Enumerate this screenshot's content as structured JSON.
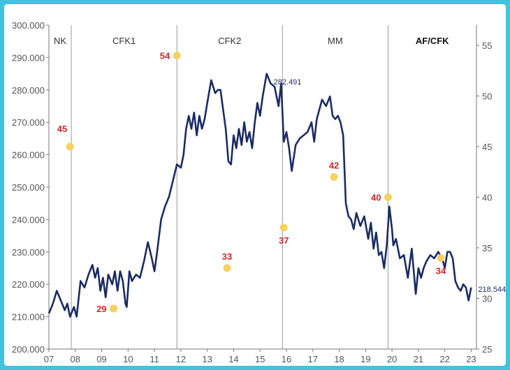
{
  "colors": {
    "background": "#3fc3de",
    "line": "#1a2b66",
    "dot": "#f6d160",
    "point_label": "#d7262b",
    "divider": "#9a9a9a",
    "axis": "#777777"
  },
  "chart_data": {
    "type": "line",
    "title": "",
    "xlabel": "",
    "ylabel": "",
    "xlim": [
      2007,
      2023.2
    ],
    "ylim": [
      200000,
      300000
    ],
    "ylim_right": [
      25,
      57
    ],
    "x_tick_labels": [
      "07",
      "08",
      "09",
      "10",
      "11",
      "12",
      "13",
      "14",
      "15",
      "16",
      "17",
      "18",
      "19",
      "20",
      "21",
      "22",
      "23"
    ],
    "x_ticks": [
      2007,
      2008,
      2009,
      2010,
      2011,
      2012,
      2013,
      2014,
      2015,
      2016,
      2017,
      2018,
      2019,
      2020,
      2021,
      2022,
      2023
    ],
    "y_tick_labels_left": [
      "200.000",
      "210.000",
      "220.000",
      "230.000",
      "240.000",
      "250.000",
      "260.000",
      "270.000",
      "280.000",
      "290.000",
      "300.000"
    ],
    "y_ticks_left": [
      200000,
      210000,
      220000,
      230000,
      240000,
      250000,
      260000,
      270000,
      280000,
      290000,
      300000
    ],
    "y_tick_labels_right": [
      "25",
      "30",
      "35",
      "40",
      "45",
      "50",
      "55"
    ],
    "y_ticks_right": [
      25,
      30,
      35,
      40,
      45,
      50,
      55
    ],
    "grid": false,
    "periods": [
      {
        "label": "NK",
        "start": 2007,
        "end": 2007.85,
        "bold": false
      },
      {
        "label": "CFK1",
        "start": 2007.85,
        "end": 2011.85,
        "bold": false
      },
      {
        "label": "CFK2",
        "start": 2011.85,
        "end": 2015.85,
        "bold": false
      },
      {
        "label": "MM",
        "start": 2015.85,
        "end": 2019.85,
        "bold": false
      },
      {
        "label": "AF/CFK",
        "start": 2019.85,
        "end": 2023.2,
        "bold": true
      }
    ],
    "dividers": [
      2007.85,
      2011.85,
      2015.85,
      2019.85
    ],
    "series": [
      {
        "axis": "left",
        "x": [
          2007.0,
          2007.15,
          2007.3,
          2007.45,
          2007.6,
          2007.7,
          2007.8,
          2007.95,
          2008.05,
          2008.2,
          2008.35,
          2008.5,
          2008.65,
          2008.75,
          2008.85,
          2008.95,
          2009.05,
          2009.15,
          2009.25,
          2009.4,
          2009.5,
          2009.6,
          2009.7,
          2009.8,
          2009.9,
          2009.95,
          2010.05,
          2010.15,
          2010.3,
          2010.45,
          2010.6,
          2010.75,
          2010.9,
          2011.0,
          2011.1,
          2011.25,
          2011.4,
          2011.55,
          2011.7,
          2011.85,
          2012.0,
          2012.1,
          2012.2,
          2012.3,
          2012.4,
          2012.5,
          2012.6,
          2012.7,
          2012.8,
          2012.9,
          2013.0,
          2013.15,
          2013.3,
          2013.4,
          2013.5,
          2013.6,
          2013.7,
          2013.8,
          2013.9,
          2014.0,
          2014.1,
          2014.2,
          2014.3,
          2014.4,
          2014.5,
          2014.6,
          2014.7,
          2014.8,
          2014.9,
          2015.0,
          2015.1,
          2015.25,
          2015.4,
          2015.55,
          2015.7,
          2015.8,
          2015.9,
          2016.0,
          2016.1,
          2016.2,
          2016.35,
          2016.5,
          2016.65,
          2016.8,
          2016.95,
          2017.05,
          2017.15,
          2017.25,
          2017.35,
          2017.5,
          2017.65,
          2017.75,
          2017.85,
          2017.95,
          2018.05,
          2018.15,
          2018.25,
          2018.35,
          2018.45,
          2018.55,
          2018.65,
          2018.8,
          2018.95,
          2019.1,
          2019.2,
          2019.3,
          2019.4,
          2019.5,
          2019.6,
          2019.7,
          2019.8,
          2019.9,
          2020.0,
          2020.05,
          2020.15,
          2020.3,
          2020.45,
          2020.6,
          2020.75,
          2020.9,
          2021.0,
          2021.1,
          2021.2,
          2021.3,
          2021.45,
          2021.6,
          2021.75,
          2021.9,
          2022.0,
          2022.1,
          2022.2,
          2022.3,
          2022.4,
          2022.5,
          2022.6,
          2022.7,
          2022.8,
          2022.9,
          2023.0
        ],
        "y": [
          211000,
          214000,
          218000,
          215000,
          212000,
          214000,
          210000,
          213000,
          210000,
          221000,
          219000,
          223000,
          226000,
          222000,
          225000,
          218000,
          222000,
          216000,
          223000,
          220000,
          224000,
          218000,
          224000,
          221000,
          214000,
          213000,
          224000,
          221000,
          223000,
          222000,
          227000,
          233000,
          228000,
          224000,
          230000,
          240000,
          244000,
          247000,
          252000,
          257000,
          256000,
          260000,
          268000,
          272000,
          268000,
          273000,
          266000,
          272000,
          268000,
          271000,
          276000,
          283000,
          279000,
          280000,
          280000,
          274000,
          268000,
          258000,
          257000,
          266000,
          262000,
          268000,
          263000,
          270000,
          264000,
          267000,
          262000,
          270000,
          276000,
          272000,
          278000,
          285000,
          282000,
          281000,
          275000,
          282000,
          264000,
          267000,
          262000,
          255000,
          263000,
          265000,
          266000,
          267000,
          270000,
          264000,
          271000,
          274000,
          277000,
          275000,
          278000,
          272000,
          271000,
          272000,
          270000,
          266000,
          245000,
          241000,
          240000,
          237000,
          242000,
          238000,
          241000,
          234000,
          239000,
          231000,
          236000,
          229000,
          230000,
          225000,
          232000,
          244000,
          237000,
          232000,
          234000,
          228000,
          229000,
          222000,
          231000,
          217000,
          225000,
          222000,
          225000,
          227000,
          229000,
          228000,
          230000,
          228000,
          225000,
          230000,
          230000,
          228000,
          221000,
          219000,
          218000,
          220000,
          219000,
          215000,
          219000
        ]
      }
    ],
    "points": [
      {
        "x": 2007.8,
        "value": 45,
        "label": "45",
        "label_pos": "above-left"
      },
      {
        "x": 2009.45,
        "value": 29,
        "label": "29",
        "label_pos": "left"
      },
      {
        "x": 2011.85,
        "value": 54,
        "label": "54",
        "label_pos": "left"
      },
      {
        "x": 2013.75,
        "value": 33,
        "label": "33",
        "label_pos": "above"
      },
      {
        "x": 2015.9,
        "value": 37,
        "label": "37",
        "label_pos": "below"
      },
      {
        "x": 2017.8,
        "value": 42,
        "label": "42",
        "label_pos": "above"
      },
      {
        "x": 2019.85,
        "value": 40,
        "label": "40",
        "label_pos": "left"
      },
      {
        "x": 2021.85,
        "value": 34,
        "label": "34",
        "label_pos": "below"
      }
    ],
    "annotations": [
      {
        "text": "282.491",
        "x": 2015.25,
        "y": 282491
      },
      {
        "text": "218.544",
        "x": 2023.0,
        "y": 218544
      }
    ]
  }
}
